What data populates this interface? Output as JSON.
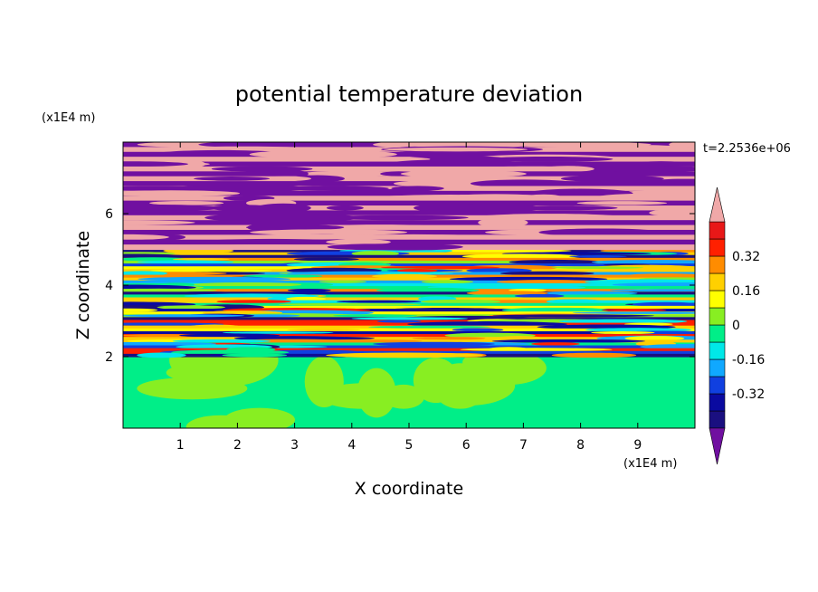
{
  "chart_data": {
    "type": "heatmap",
    "title": "potential temperature deviation",
    "xlabel": "X coordinate",
    "ylabel": "Z coordinate",
    "x_unit": "(x1E4 m)",
    "z_unit": "(x1E4 m)",
    "timestamp": "t=2.2536e+06",
    "xlim": [
      0,
      10
    ],
    "zlim": [
      0,
      8
    ],
    "x_ticks": [
      "1",
      "2",
      "3",
      "4",
      "5",
      "6",
      "7",
      "8",
      "9"
    ],
    "z_ticks": [
      "2",
      "4",
      "6"
    ],
    "x_tick_values": [
      1,
      2,
      3,
      4,
      5,
      6,
      7,
      8,
      9
    ],
    "z_tick_values": [
      2,
      4,
      6
    ],
    "colorbar": {
      "levels": [
        -0.48,
        -0.4,
        -0.32,
        -0.24,
        -0.16,
        -0.08,
        0,
        0.08,
        0.16,
        0.24,
        0.32,
        0.4,
        0.48
      ],
      "colors": [
        "#1a0f80",
        "#0a0aa0",
        "#1040e0",
        "#10a8ff",
        "#00e8e8",
        "#00ee88",
        "#88ee22",
        "#ffff00",
        "#ffd000",
        "#ff8c00",
        "#ff2000",
        "#e81818"
      ],
      "under_color": "#7010a0",
      "over_color": "#f0a8a8",
      "tick_labels": [
        "0.32",
        "0.16",
        "0",
        "-0.16",
        "-0.32"
      ],
      "tick_values": [
        0.32,
        0.16,
        0,
        -0.16,
        -0.32
      ]
    },
    "bands": [
      {
        "z": [
          0,
          2.0
        ],
        "pattern": "green mix",
        "colors": [
          "#00ee88",
          "#88ee22"
        ]
      },
      {
        "z": [
          2.0,
          5.0
        ],
        "pattern": "mixed layered",
        "colors": [
          "#1a0f80",
          "#0a0aa0",
          "#1040e0",
          "#10a8ff",
          "#00e8e8",
          "#00ee88",
          "#88ee22",
          "#ffff00",
          "#ffd000",
          "#ff8c00",
          "#ff2000"
        ]
      },
      {
        "z": [
          5.0,
          8.0
        ],
        "pattern": "alternating layers",
        "colors": [
          "#7010a0",
          "#f0a8a8"
        ]
      }
    ]
  }
}
